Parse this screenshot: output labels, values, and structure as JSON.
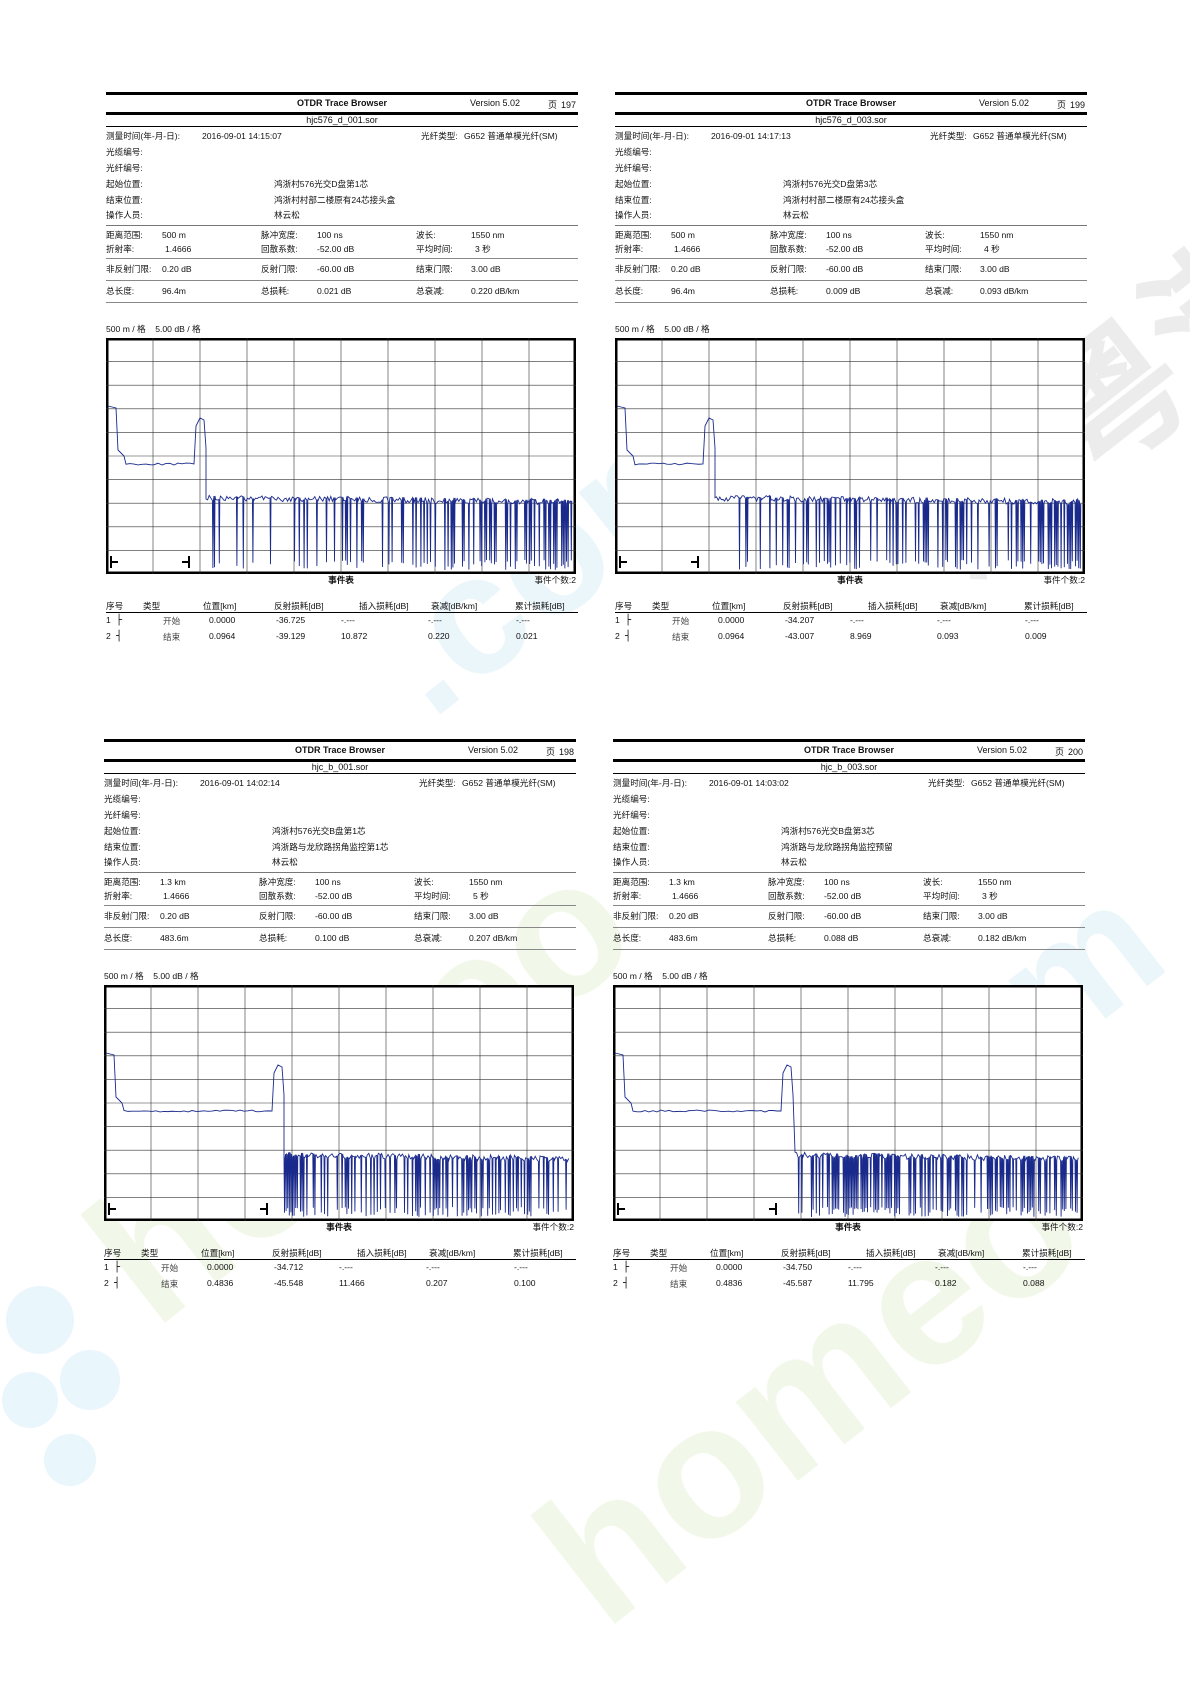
{
  "labels": {
    "app": "OTDR Trace Browser",
    "page_prefix": "页",
    "measure_time": "测量时间(年-月-日):",
    "fiber_type": "光纤类型:",
    "cable_no": "光缆编号:",
    "fiber_no": "光纤编号:",
    "start_loc": "起始位置:",
    "end_loc": "结束位置:",
    "operator": "操作人员:",
    "range": "距离范围:",
    "pulse": "脉冲宽度:",
    "wavelength": "波长:",
    "ior": "折射率:",
    "backscatter": "回散系数:",
    "avg_time": "平均时间:",
    "nonref": "非反射门限:",
    "ref": "反射门限:",
    "end_thr": "结束门限:",
    "total_len": "总长度:",
    "total_loss": "总损耗:",
    "total_atten": "总衰减:",
    "event_table": "事件表",
    "event_count_prefix": "事件个数:",
    "cols": [
      "序号",
      "类型",
      "位置[km]",
      "反射损耗[dB]",
      "插入损耗[dB]",
      "衰减[dB/km]",
      "累计损耗[dB]"
    ],
    "type_start": "开始",
    "type_end": "结束",
    "scale_h": "500 m / 格",
    "scale_v": "5.00 dB / 格"
  },
  "reports": [
    {
      "version": "Version 5.02",
      "page": "197",
      "file": "hjc576_d_001.sor",
      "datetime": "2016-09-01   14:15:07",
      "fiber_type": "G652 普通单模光纤(SM)",
      "start": "鸿浙村576光交D盘第1芯",
      "end": "鸿浙村村部二楼原有24芯接头盒",
      "operator": "林云松",
      "range": "500 m",
      "pulse": "100 ns",
      "wavelength": "1550 nm",
      "ior": "1.4666",
      "backscatter": "-52.00 dB",
      "avg_time": "3 秒",
      "nonref": "0.20 dB",
      "ref": "-60.00 dB",
      "end_thr": "3.00 dB",
      "total_len": "96.4m",
      "total_loss": "0.021 dB",
      "total_atten": "0.220 dB/km",
      "event_count": "2",
      "events": [
        {
          "no": "1",
          "type": "start",
          "sym": "├",
          "pos": "0.0000",
          "refl": "-36.725",
          "ins": "-.---",
          "att": "-.---",
          "cum": "-.---"
        },
        {
          "no": "2",
          "type": "end",
          "sym": "┤",
          "pos": "0.0964",
          "refl": "-39.129",
          "ins": "10.872",
          "att": "0.220",
          "cum": "0.021"
        }
      ]
    },
    {
      "version": "Version 5.02",
      "page": "199",
      "file": "hjc576_d_003.sor",
      "datetime": "2016-09-01   14:17:13",
      "fiber_type": "G652 普通单模光纤(SM)",
      "start": "鸿浙村576光交D盘第3芯",
      "end": "鸿浙村村部二楼原有24芯接头盒",
      "operator": "林云松",
      "range": "500 m",
      "pulse": "100 ns",
      "wavelength": "1550 nm",
      "ior": "1.4666",
      "backscatter": "-52.00 dB",
      "avg_time": "4 秒",
      "nonref": "0.20 dB",
      "ref": "-60.00 dB",
      "end_thr": "3.00 dB",
      "total_len": "96.4m",
      "total_loss": "0.009 dB",
      "total_atten": "0.093 dB/km",
      "event_count": "2",
      "events": [
        {
          "no": "1",
          "type": "start",
          "sym": "├",
          "pos": "0.0000",
          "refl": "-34.207",
          "ins": "-.---",
          "att": "-.---",
          "cum": "-.---"
        },
        {
          "no": "2",
          "type": "end",
          "sym": "┤",
          "pos": "0.0964",
          "refl": "-43.007",
          "ins": "8.969",
          "att": "0.093",
          "cum": "0.009"
        }
      ]
    },
    {
      "version": "Version 5.02",
      "page": "198",
      "file": "hjc_b_001.sor",
      "datetime": "2016-09-01   14:02:14",
      "fiber_type": "G652 普通单模光纤(SM)",
      "start": "鸿浙村576光交B盘第1芯",
      "end": "鸿浙路与龙欣路拐角监控第1芯",
      "operator": "林云松",
      "range": "1.3 km",
      "pulse": "100 ns",
      "wavelength": "1550 nm",
      "ior": "1.4666",
      "backscatter": "-52.00 dB",
      "avg_time": "5 秒",
      "nonref": "0.20 dB",
      "ref": "-60.00 dB",
      "end_thr": "3.00 dB",
      "total_len": "483.6m",
      "total_loss": "0.100 dB",
      "total_atten": "0.207 dB/km",
      "event_count": "2",
      "events": [
        {
          "no": "1",
          "type": "start",
          "sym": "├",
          "pos": "0.0000",
          "refl": "-34.712",
          "ins": "-.---",
          "att": "-.---",
          "cum": "-.---"
        },
        {
          "no": "2",
          "type": "end",
          "sym": "┤",
          "pos": "0.4836",
          "refl": "-45.548",
          "ins": "11.466",
          "att": "0.207",
          "cum": "0.100"
        }
      ]
    },
    {
      "version": "Version 5.02",
      "page": "200",
      "file": "hjc_b_003.sor",
      "datetime": "2016-09-01   14:03:02",
      "fiber_type": "G652 普通单模光纤(SM)",
      "start": "鸿浙村576光交B盘第3芯",
      "end": "鸿浙路与龙欣路拐角监控预留",
      "operator": "林云松",
      "range": "1.3 km",
      "pulse": "100 ns",
      "wavelength": "1550 nm",
      "ior": "1.4666",
      "backscatter": "-52.00 dB",
      "avg_time": "3 秒",
      "nonref": "0.20 dB",
      "ref": "-60.00 dB",
      "end_thr": "3.00 dB",
      "total_len": "483.6m",
      "total_loss": "0.088 dB",
      "total_atten": "0.182 dB/km",
      "event_count": "2",
      "events": [
        {
          "no": "1",
          "type": "start",
          "sym": "├",
          "pos": "0.0000",
          "refl": "-34.750",
          "ins": "-.---",
          "att": "-.---",
          "cum": "-.---"
        },
        {
          "no": "2",
          "type": "end",
          "sym": "┤",
          "pos": "0.4836",
          "refl": "-45.587",
          "ins": "11.795",
          "att": "0.182",
          "cum": "0.088"
        }
      ]
    }
  ],
  "trace_color": "#1a2a8c",
  "watermark": {
    "text": "河粤港",
    "site": "homeo.com",
    "colors": [
      "#e8f3d6",
      "#dcebf5",
      "#e6e6e6"
    ]
  }
}
